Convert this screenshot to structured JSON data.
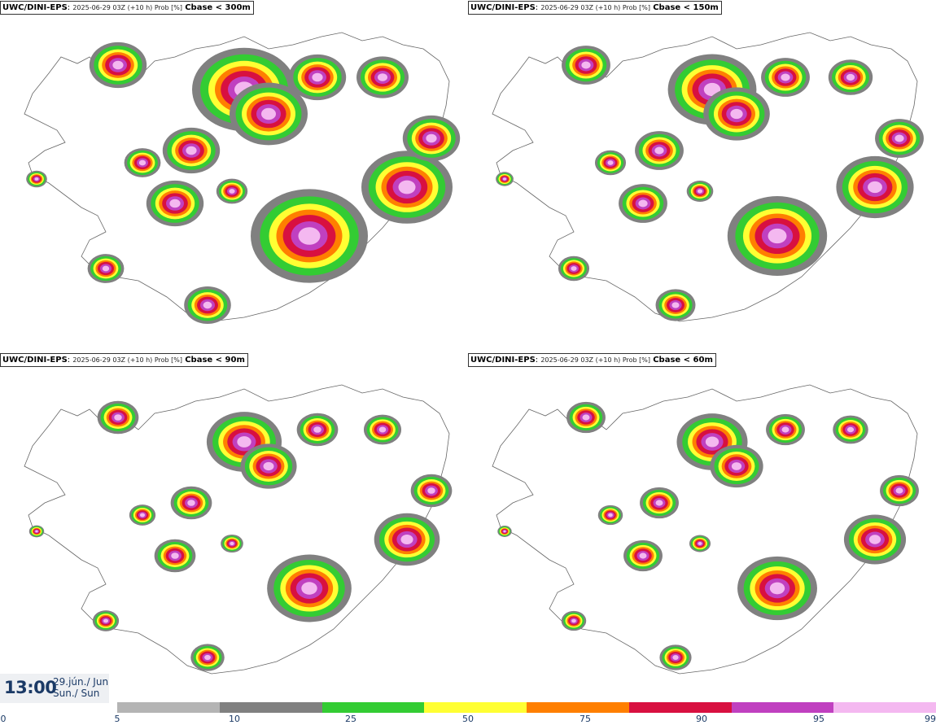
{
  "panels": [
    {
      "model": "UWC/DINI-EPS",
      "meta": "2025-06-29 03Z (+10 h) Prob [%]",
      "threshold": "Cbase < 300m"
    },
    {
      "model": "UWC/DINI-EPS",
      "meta": "2025-06-29 03Z (+10 h) Prob [%]",
      "threshold": "Cbase < 150m"
    },
    {
      "model": "UWC/DINI-EPS",
      "meta": "2025-06-29 03Z (+10 h) Prob [%]",
      "threshold": "Cbase < 90m"
    },
    {
      "model": "UWC/DINI-EPS",
      "meta": "2025-06-29 03Z (+10 h) Prob [%]",
      "threshold": "Cbase < 60m"
    }
  ],
  "valid_time": {
    "time": "13:00",
    "date_line1": "29.jún./ Jun",
    "date_line2": "Sun./ Sun"
  },
  "colorbar": {
    "ticks": [
      "0",
      "5",
      "10",
      "25",
      "50",
      "75",
      "90",
      "95",
      "99"
    ],
    "colors": [
      "#b4b4b4",
      "#808080",
      "#33cc33",
      "#ffff33",
      "#ff7f00",
      "#d81040",
      "#c040c0",
      "#f4b8f0"
    ]
  },
  "legend_colors": {
    "land_outline": "#777777",
    "low": "#b4b4b4",
    "mid_grey": "#808080",
    "green": "#33cc33",
    "yellow": "#ffff33",
    "orange": "#ff7f00",
    "red": "#d81040",
    "magenta": "#c040c0",
    "pink": "#f4b8f0"
  }
}
